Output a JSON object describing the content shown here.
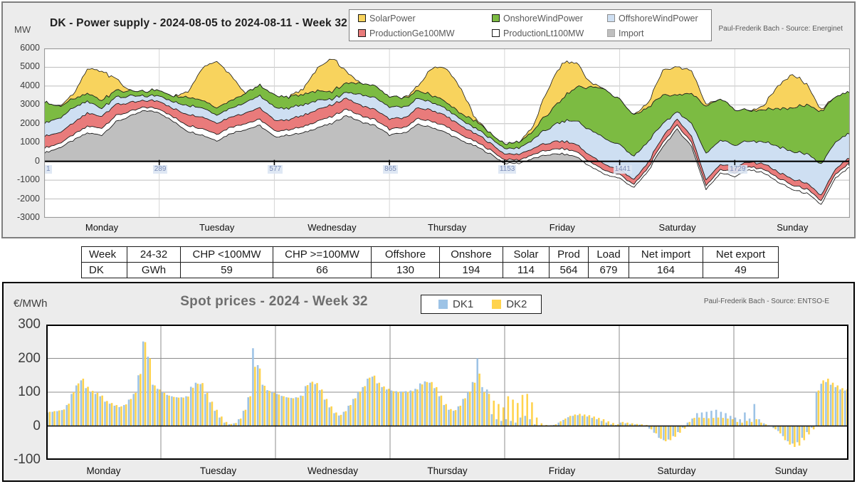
{
  "colors": {
    "figure_bg": "#ececec",
    "plot_bg": "#ffffff",
    "solar": "#F8D35D",
    "onshore": "#7CBB42",
    "offshore": "#CEDFF2",
    "prod_ge100": "#E97B7B",
    "prod_lt100": "#FFFFFF",
    "import": "#BFBFBF",
    "dk1": "#9DC3E6",
    "dk2": "#FFD34D"
  },
  "top_chart": {
    "unit_label": "MW",
    "title": "DK - Power supply - 2024-08-05 to 2024-08-11 - Week 32",
    "source": "Paul-Frederik Bach - Source: Energinet",
    "legend": [
      {
        "label": "SolarPower",
        "color": "#F8D35D",
        "border": "#1a1a1a"
      },
      {
        "label": "OnshoreWindPower",
        "color": "#7CBB42",
        "border": "#1a1a1a"
      },
      {
        "label": "OffshoreWindPower",
        "color": "#CEDFF2",
        "border": "#8c8c8c"
      },
      {
        "label": "ProductionGe100MW",
        "color": "#E97B7B",
        "border": "#1a1a1a"
      },
      {
        "label": "ProductionLt100MW",
        "color": "#FFFFFF",
        "border": "#1a1a1a"
      },
      {
        "label": "Import",
        "color": "#BFBFBF",
        "border": "#a6a6a6"
      }
    ],
    "y_ticks": [
      6000,
      5000,
      4000,
      3000,
      2000,
      1000,
      0,
      -1000,
      -2000,
      -3000
    ],
    "x_ticks": [
      "1",
      "289",
      "577",
      "865",
      "1153",
      "1441",
      "1729"
    ]
  },
  "day_labels": [
    "Monday",
    "Tuesday",
    "Wednesday",
    "Thursday",
    "Friday",
    "Saturday",
    "Sunday"
  ],
  "summary_table": {
    "headers": [
      "Week",
      "24-32",
      "CHP <100MW",
      "CHP >=100MW",
      "Offshore",
      "Onshore",
      "Solar",
      "Prod",
      "Load",
      "Net import",
      "Net export"
    ],
    "rows": [
      [
        "DK",
        "GWh",
        "59",
        "66",
        "130",
        "194",
        "114",
        "564",
        "679",
        "164",
        "49"
      ]
    ]
  },
  "bottom_chart": {
    "unit_label": "€/MWh",
    "title": "Spot prices - 2024 - Week 32",
    "source": "Paul-Frederik Bach - Source: ENTSO-E",
    "legend": [
      {
        "label": "DK1",
        "color": "#9DC3E6",
        "border": "#9DC3E6"
      },
      {
        "label": "DK2",
        "color": "#FFD34D",
        "border": "#FFD34D"
      }
    ],
    "y_ticks": [
      300,
      200,
      100,
      0,
      -100
    ]
  },
  "chart_data": [
    {
      "id": "power_supply",
      "type": "area",
      "stacked": true,
      "title": "DK - Power supply - 2024-08-05 to 2024-08-11 - Week 32",
      "ylabel": "MW",
      "ylim": [
        -3000,
        6000
      ],
      "x_unit": "hours of week, values sampled every 3 h",
      "x_range_hours": [
        0,
        168
      ],
      "x_tick_labels": [
        "1",
        "289",
        "577",
        "865",
        "1153",
        "1441",
        "1729"
      ],
      "grid": true,
      "legend_position": "top",
      "series": [
        {
          "name": "Import",
          "color": "#BFBFBF",
          "values": [
            450,
            700,
            1100,
            1500,
            1400,
            2100,
            2400,
            2700,
            2600,
            2100,
            1600,
            1400,
            1100,
            1500,
            1700,
            1900,
            1300,
            1400,
            1500,
            1800,
            2000,
            2450,
            2100,
            1900,
            1400,
            1500,
            1950,
            1800,
            1500,
            1100,
            800,
            400,
            -100,
            -100,
            150,
            350,
            400,
            250,
            -300,
            -700,
            -900,
            -1400,
            -500,
            800,
            1700,
            800,
            -1500,
            -600,
            -800,
            -450,
            -600,
            -1100,
            -1500,
            -1700,
            -2300,
            -900,
            -300
          ]
        },
        {
          "name": "ProductionLt100MW",
          "color": "#FFFFFF",
          "values": [
            260,
            230,
            290,
            350,
            370,
            340,
            250,
            180,
            200,
            240,
            310,
            350,
            360,
            330,
            320,
            330,
            310,
            290,
            320,
            350,
            360,
            340,
            330,
            320,
            310,
            290,
            310,
            330,
            330,
            290,
            250,
            210,
            180,
            170,
            210,
            260,
            280,
            260,
            230,
            210,
            190,
            170,
            190,
            220,
            220,
            220,
            200,
            190,
            190,
            170,
            190,
            220,
            240,
            220,
            210,
            200,
            210
          ]
        },
        {
          "name": "ProductionGe100MW",
          "color": "#E97B7B",
          "values": [
            660,
            560,
            610,
            690,
            640,
            600,
            450,
            350,
            400,
            450,
            570,
            620,
            570,
            540,
            560,
            600,
            570,
            530,
            590,
            630,
            610,
            580,
            560,
            540,
            550,
            510,
            560,
            590,
            550,
            470,
            410,
            360,
            320,
            290,
            330,
            380,
            400,
            380,
            340,
            310,
            290,
            260,
            280,
            320,
            320,
            320,
            300,
            280,
            270,
            250,
            270,
            300,
            320,
            300,
            290,
            280,
            290
          ]
        },
        {
          "name": "OffshoreWindPower",
          "color": "#CEDFF2",
          "values": [
            700,
            760,
            820,
            640,
            430,
            380,
            350,
            250,
            300,
            350,
            480,
            480,
            430,
            470,
            560,
            640,
            680,
            620,
            560,
            500,
            300,
            300,
            560,
            620,
            620,
            560,
            500,
            420,
            380,
            330,
            290,
            270,
            290,
            330,
            480,
            760,
            1050,
            1250,
            1350,
            1380,
            1300,
            1250,
            1100,
            700,
            400,
            700,
            1400,
            1300,
            1200,
            1100,
            1180,
            1350,
            1450,
            1550,
            1650,
            1450,
            1280
          ]
        },
        {
          "name": "OnshoreWindPower",
          "color": "#7CBB42",
          "values": [
            1130,
            650,
            480,
            420,
            410,
            370,
            250,
            250,
            300,
            310,
            440,
            400,
            380,
            420,
            500,
            550,
            650,
            600,
            550,
            500,
            400,
            520,
            600,
            620,
            550,
            480,
            420,
            380,
            350,
            300,
            400,
            250,
            250,
            300,
            450,
            800,
            1200,
            1800,
            2300,
            2600,
            2400,
            2200,
            1800,
            1500,
            900,
            1600,
            2500,
            2200,
            1900,
            1600,
            1700,
            2000,
            2300,
            2600,
            2800,
            2400,
            2200
          ]
        },
        {
          "name": "SolarPower",
          "color": "#F8D35D",
          "values": [
            0,
            0,
            200,
            1300,
            1550,
            600,
            0,
            0,
            0,
            0,
            300,
            1700,
            2500,
            1300,
            0,
            0,
            0,
            0,
            300,
            1200,
            1800,
            600,
            0,
            0,
            0,
            0,
            250,
            1500,
            1800,
            1300,
            100,
            0,
            0,
            0,
            250,
            1300,
            1900,
            1300,
            200,
            0,
            0,
            0,
            250,
            1300,
            1500,
            1200,
            100,
            0,
            0,
            0,
            200,
            1200,
            1800,
            1100,
            100,
            0,
            0
          ]
        }
      ]
    },
    {
      "id": "spot_prices",
      "type": "bar",
      "title": "Spot prices - 2024 - Week 32",
      "ylabel": "€/MWh",
      "ylim": [
        -100,
        300
      ],
      "x_unit": "hour of week (Mon-Sun)",
      "grid": true,
      "legend_position": "top",
      "series": [
        {
          "name": "DK1",
          "color": "#9DC3E6",
          "values": [
            40,
            42,
            44,
            47,
            62,
            95,
            120,
            135,
            112,
            100,
            95,
            88,
            72,
            66,
            60,
            56,
            62,
            78,
            95,
            150,
            250,
            205,
            122,
            110,
            100,
            92,
            88,
            85,
            85,
            88,
            116,
            128,
            124,
            95,
            70,
            45,
            25,
            10,
            5,
            8,
            20,
            45,
            85,
            230,
            180,
            122,
            106,
            100,
            95,
            89,
            85,
            83,
            85,
            90,
            118,
            128,
            124,
            106,
            78,
            55,
            38,
            31,
            42,
            60,
            80,
            100,
            115,
            140,
            146,
            126,
            115,
            108,
            105,
            103,
            102,
            103,
            105,
            110,
            126,
            132,
            128,
            112,
            88,
            62,
            48,
            45,
            58,
            80,
            100,
            130,
            200,
            115,
            108,
            35,
            20,
            15,
            20,
            15,
            10,
            25,
            30,
            20,
            5,
            2,
            1,
            1,
            3,
            10,
            18,
            26,
            30,
            32,
            30,
            28,
            24,
            20,
            15,
            10,
            5,
            3,
            10,
            8,
            6,
            5,
            4,
            2,
            -8,
            -20,
            -35,
            -42,
            -40,
            -30,
            -18,
            -5,
            10,
            22,
            38,
            40,
            42,
            45,
            48,
            42,
            38,
            30,
            25,
            20,
            40,
            22,
            65,
            20,
            8,
            2,
            -6,
            -15,
            -30,
            -45,
            -52,
            -48,
            -35,
            -18,
            -5,
            100,
            125,
            130,
            122,
            115,
            108,
            105
          ]
        },
        {
          "name": "DK2",
          "color": "#FFD34D",
          "values": [
            42,
            44,
            46,
            49,
            66,
            100,
            126,
            140,
            116,
            104,
            98,
            90,
            74,
            68,
            62,
            58,
            64,
            80,
            98,
            154,
            248,
            200,
            120,
            108,
            98,
            90,
            86,
            84,
            84,
            87,
            113,
            125,
            127,
            98,
            72,
            48,
            28,
            12,
            6,
            9,
            22,
            48,
            88,
            175,
            170,
            119,
            104,
            98,
            93,
            88,
            84,
            82,
            84,
            89,
            121,
            131,
            127,
            108,
            80,
            58,
            40,
            33,
            44,
            62,
            82,
            102,
            118,
            143,
            149,
            128,
            117,
            110,
            103,
            101,
            100,
            101,
            103,
            108,
            123,
            130,
            130,
            115,
            90,
            65,
            50,
            47,
            60,
            82,
            102,
            128,
            155,
            100,
            95,
            75,
            65,
            55,
            88,
            78,
            68,
            92,
            95,
            70,
            25,
            8,
            3,
            2,
            5,
            14,
            22,
            30,
            34,
            36,
            34,
            32,
            28,
            24,
            20,
            14,
            9,
            5,
            12,
            10,
            8,
            6,
            5,
            3,
            -10,
            -22,
            -38,
            -45,
            -42,
            -32,
            -20,
            -8,
            12,
            24,
            25,
            24,
            23,
            24,
            25,
            24,
            22,
            20,
            12,
            10,
            15,
            12,
            20,
            10,
            5,
            1,
            -10,
            -22,
            -42,
            -55,
            -62,
            -58,
            -42,
            -25,
            -10,
            105,
            135,
            140,
            128,
            120,
            112,
            108
          ]
        }
      ]
    }
  ]
}
